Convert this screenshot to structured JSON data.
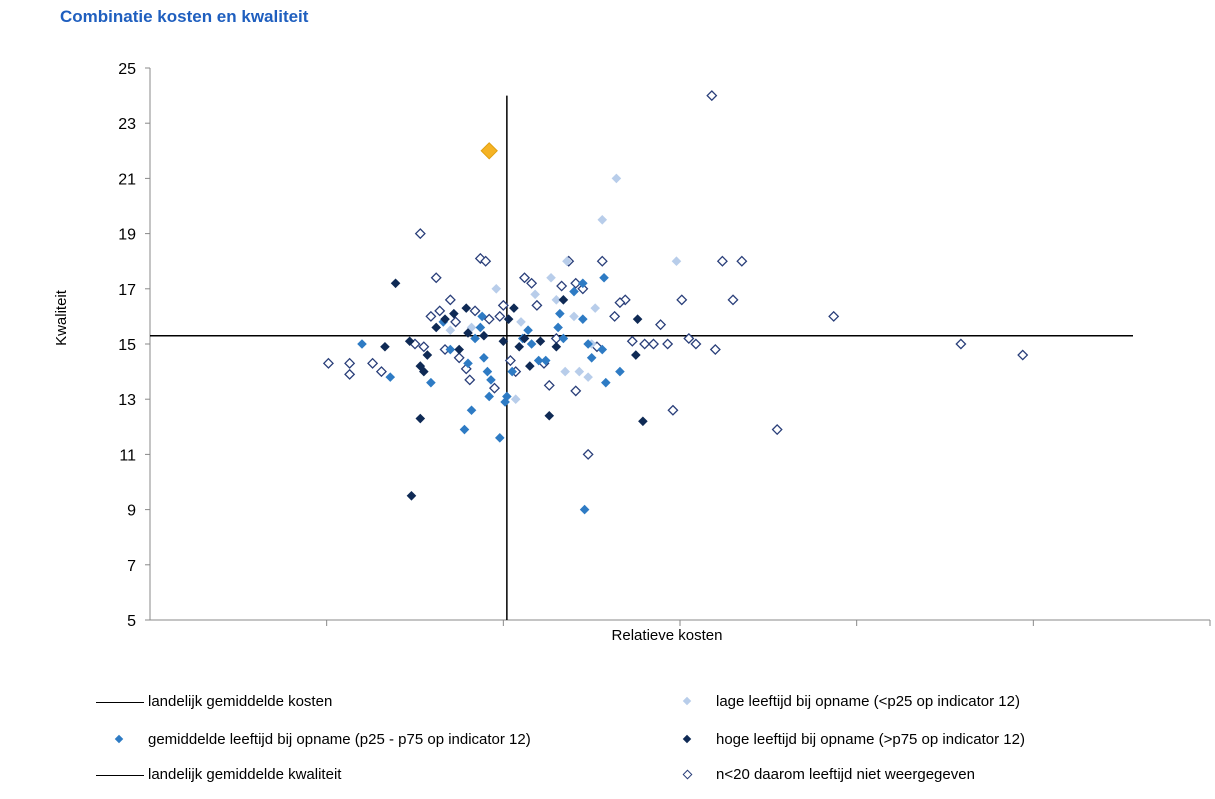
{
  "title": "Combinatie  kosten en kwaliteit",
  "colors": {
    "title": "#1f5fbf",
    "lage": "#b8cdea",
    "gemiddelde": "#2e7bc4",
    "hoge": "#0f2a55",
    "n20": "#2a3f7a",
    "highlight": "#f5b324"
  },
  "chart_data": {
    "type": "scatter",
    "title": "Combinatie  kosten en kwaliteit",
    "xlabel": "Relatieve kosten",
    "ylabel": "Kwaliteit",
    "ylim": [
      5,
      25
    ],
    "yticks": [
      "5",
      "7",
      "9",
      "11",
      "13",
      "15",
      "17",
      "19",
      "21",
      "23",
      "25"
    ],
    "xlim": [
      0,
      6
    ],
    "x_tick_labels_shown": false,
    "reference_lines": {
      "landelijk_gemiddelde_kosten_x": 2.02,
      "landelijk_gemiddelde_kwaliteit_y": 15.3
    },
    "highlight_point": {
      "x": 1.92,
      "y": 22.0
    },
    "series": [
      {
        "name": "lage leeftijd bij opname (<p25 op indicator 12)",
        "marker": "filled-diamond-light",
        "points": [
          [
            2.27,
            17.4
          ],
          [
            2.36,
            18.0
          ],
          [
            2.56,
            19.5
          ],
          [
            2.64,
            21.0
          ],
          [
            2.98,
            18.0
          ],
          [
            2.4,
            16.0
          ],
          [
            2.3,
            16.6
          ],
          [
            2.35,
            14.0
          ],
          [
            2.43,
            14.0
          ],
          [
            2.48,
            13.8
          ],
          [
            1.96,
            17.0
          ],
          [
            2.07,
            13.0
          ],
          [
            1.82,
            15.6
          ],
          [
            2.18,
            16.8
          ],
          [
            2.5,
            15.0
          ],
          [
            2.52,
            16.3
          ],
          [
            1.7,
            15.5
          ],
          [
            2.1,
            15.8
          ]
        ]
      },
      {
        "name": "gemiddelde leeftijd bij opname (p25 - p75 op indicator 12)",
        "marker": "filled-diamond",
        "points": [
          [
            1.2,
            15.0
          ],
          [
            1.36,
            13.8
          ],
          [
            1.59,
            13.6
          ],
          [
            1.7,
            14.8
          ],
          [
            1.8,
            14.3
          ],
          [
            1.84,
            15.2
          ],
          [
            1.87,
            15.6
          ],
          [
            1.89,
            14.5
          ],
          [
            1.91,
            14.0
          ],
          [
            1.93,
            13.7
          ],
          [
            1.92,
            13.1
          ],
          [
            1.82,
            12.6
          ],
          [
            1.78,
            11.9
          ],
          [
            1.98,
            11.6
          ],
          [
            2.01,
            12.9
          ],
          [
            2.02,
            13.1
          ],
          [
            2.05,
            14.0
          ],
          [
            2.11,
            15.2
          ],
          [
            2.14,
            15.5
          ],
          [
            2.16,
            15.0
          ],
          [
            2.2,
            14.4
          ],
          [
            2.24,
            14.4
          ],
          [
            2.31,
            15.6
          ],
          [
            2.34,
            15.2
          ],
          [
            2.32,
            16.1
          ],
          [
            2.4,
            16.9
          ],
          [
            2.45,
            17.2
          ],
          [
            2.45,
            15.9
          ],
          [
            2.48,
            15.0
          ],
          [
            2.5,
            14.5
          ],
          [
            2.56,
            14.8
          ],
          [
            2.57,
            17.4
          ],
          [
            2.58,
            13.6
          ],
          [
            2.66,
            14.0
          ],
          [
            2.46,
            9.0
          ],
          [
            1.66,
            15.8
          ],
          [
            1.88,
            16.0
          ]
        ]
      },
      {
        "name": "hoge leeftijd bij opname (>p75 op indicator 12)",
        "marker": "filled-diamond-dark",
        "points": [
          [
            1.33,
            14.9
          ],
          [
            1.39,
            17.2
          ],
          [
            1.47,
            15.1
          ],
          [
            1.53,
            12.3
          ],
          [
            1.57,
            14.6
          ],
          [
            1.53,
            14.2
          ],
          [
            1.55,
            14.0
          ],
          [
            1.62,
            15.6
          ],
          [
            1.67,
            15.9
          ],
          [
            1.72,
            16.1
          ],
          [
            1.75,
            14.8
          ],
          [
            1.79,
            16.3
          ],
          [
            1.8,
            15.4
          ],
          [
            1.89,
            15.3
          ],
          [
            2.0,
            15.1
          ],
          [
            2.03,
            15.9
          ],
          [
            2.06,
            16.3
          ],
          [
            2.09,
            14.9
          ],
          [
            2.12,
            15.2
          ],
          [
            2.15,
            14.2
          ],
          [
            2.21,
            15.1
          ],
          [
            2.26,
            12.4
          ],
          [
            2.3,
            14.9
          ],
          [
            2.34,
            16.6
          ],
          [
            2.76,
            15.9
          ],
          [
            2.79,
            12.2
          ],
          [
            2.75,
            14.6
          ],
          [
            1.48,
            9.5
          ]
        ]
      },
      {
        "name": "n<20 daarom leeftijd niet weergegeven",
        "marker": "open-diamond",
        "points": [
          [
            1.01,
            14.3
          ],
          [
            1.13,
            14.3
          ],
          [
            1.13,
            13.9
          ],
          [
            1.26,
            14.3
          ],
          [
            1.31,
            14.0
          ],
          [
            1.53,
            19.0
          ],
          [
            1.5,
            15.0
          ],
          [
            1.55,
            14.9
          ],
          [
            1.59,
            16.0
          ],
          [
            1.62,
            17.4
          ],
          [
            1.64,
            16.2
          ],
          [
            1.67,
            14.8
          ],
          [
            1.7,
            16.6
          ],
          [
            1.73,
            15.8
          ],
          [
            1.75,
            14.5
          ],
          [
            1.79,
            14.1
          ],
          [
            1.81,
            13.7
          ],
          [
            1.84,
            16.2
          ],
          [
            1.87,
            18.1
          ],
          [
            1.9,
            18.0
          ],
          [
            1.92,
            15.9
          ],
          [
            1.95,
            13.4
          ],
          [
            1.98,
            16.0
          ],
          [
            2.0,
            16.4
          ],
          [
            2.04,
            14.4
          ],
          [
            2.07,
            14.0
          ],
          [
            2.12,
            17.4
          ],
          [
            2.16,
            17.2
          ],
          [
            2.19,
            16.4
          ],
          [
            2.23,
            14.3
          ],
          [
            2.26,
            13.5
          ],
          [
            2.3,
            15.2
          ],
          [
            2.33,
            17.1
          ],
          [
            2.37,
            18.0
          ],
          [
            2.41,
            13.3
          ],
          [
            2.45,
            17.0
          ],
          [
            2.48,
            11.0
          ],
          [
            2.53,
            14.9
          ],
          [
            2.56,
            18.0
          ],
          [
            2.63,
            16.0
          ],
          [
            2.69,
            16.6
          ],
          [
            2.73,
            15.1
          ],
          [
            2.8,
            15.0
          ],
          [
            2.85,
            15.0
          ],
          [
            2.89,
            15.7
          ],
          [
            2.93,
            15.0
          ],
          [
            2.96,
            12.6
          ],
          [
            3.01,
            16.6
          ],
          [
            3.05,
            15.2
          ],
          [
            3.09,
            15.0
          ],
          [
            3.18,
            24.0
          ],
          [
            3.2,
            14.8
          ],
          [
            3.24,
            18.0
          ],
          [
            3.3,
            16.6
          ],
          [
            3.35,
            18.0
          ],
          [
            3.55,
            11.9
          ],
          [
            3.87,
            16.0
          ],
          [
            4.59,
            15.0
          ],
          [
            4.94,
            14.6
          ],
          [
            2.41,
            17.2
          ],
          [
            2.66,
            16.5
          ]
        ]
      }
    ]
  },
  "legend": {
    "kosten": "landelijk gemiddelde kosten",
    "lage": "lage leeftijd bij opname (<p25 op indicator 12)",
    "gemiddelde": "gemiddelde leeftijd bij opname (p25 - p75 op indicator 12)",
    "hoge": "hoge leeftijd bij opname (>p75 op indicator 12)",
    "kwaliteit": "landelijk gemiddelde kwaliteit",
    "n20": "n<20 daarom leeftijd niet weergegeven"
  }
}
